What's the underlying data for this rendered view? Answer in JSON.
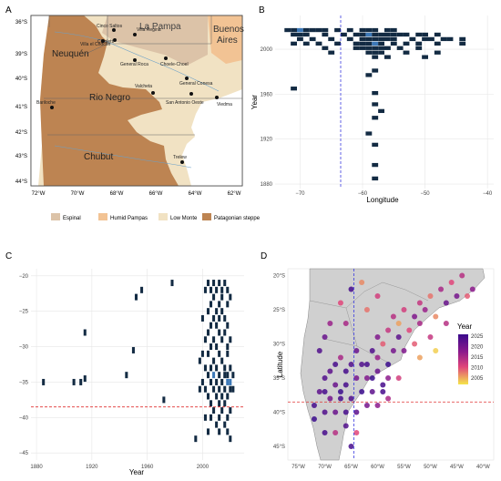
{
  "panels": {
    "A": {
      "letter": "A",
      "y_ticks": [
        "36°S",
        "39°S",
        "40°S",
        "41°S",
        "42°S",
        "43°S",
        "44°S"
      ],
      "x_ticks": [
        "72°W",
        "70°W",
        "68°W",
        "66°W",
        "64°W",
        "62°W"
      ],
      "regions": [
        "La Pampa",
        "Buenos Aires",
        "Neuquén",
        "Rio Negro",
        "Chubut"
      ],
      "cities": [
        "Cinco Saltos",
        "Cipoletti",
        "Villa Regina",
        "Villa el Chocón",
        "General Roca",
        "Choele-Choel",
        "General Conesa",
        "Bariloche",
        "Valcheta",
        "San Antonio Oeste",
        "Viedma",
        "Trelew"
      ],
      "legend": [
        {
          "label": "Espinal",
          "color": "#dcc3a8"
        },
        {
          "label": "Humid Pampas",
          "color": "#f2c394"
        },
        {
          "label": "Low Monte",
          "color": "#f1e2c3"
        },
        {
          "label": "Patagonian steppe",
          "color": "#bd8452"
        }
      ]
    },
    "B": {
      "letter": "B",
      "xlabel": "Longitude",
      "ylabel": "Year",
      "x_ticks": [
        "−70",
        "−60",
        "−50",
        "−40"
      ],
      "y_ticks": [
        "1880",
        "1920",
        "1960",
        "2000"
      ]
    },
    "C": {
      "letter": "C",
      "xlabel": "Year",
      "x_ticks": [
        "1880",
        "1920",
        "1960",
        "2000"
      ],
      "y_ticks": [
        "−20",
        "−25",
        "−30",
        "−35",
        "−40",
        "−45"
      ]
    },
    "D": {
      "letter": "D",
      "ylabel": "Latitude",
      "x_ticks": [
        "75°W",
        "70°W",
        "65°W",
        "60°W",
        "55°W",
        "50°W",
        "45°W",
        "40°W"
      ],
      "y_ticks": [
        "20°S",
        "25°S",
        "30°S",
        "35°S",
        "40°S",
        "45°S"
      ],
      "legend_title": "Year",
      "legend_ticks": [
        "2025",
        "2020",
        "2015",
        "2010",
        "2005"
      ]
    }
  },
  "chart_data": [
    {
      "panel": "B",
      "type": "heatmap",
      "xlabel": "Longitude",
      "ylabel": "Year",
      "xlim": [
        -74,
        -39
      ],
      "ylim": [
        1876,
        2030
      ],
      "reference_line": {
        "axis": "x",
        "value": -63.5,
        "color": "#3a3ae0",
        "style": "dashed"
      },
      "cells": [
        [
          -72,
          2017
        ],
        [
          -71,
          2017
        ],
        [
          -70,
          2017
        ],
        [
          -69,
          2017
        ],
        [
          -68,
          2017
        ],
        [
          -67,
          2017
        ],
        [
          -66,
          2017
        ],
        [
          -64,
          2017
        ],
        [
          -62,
          2017
        ],
        [
          -60,
          2017
        ],
        [
          -59,
          2017
        ],
        [
          -58,
          2017
        ],
        [
          -56,
          2017
        ],
        [
          -55,
          2017
        ],
        [
          -71,
          2013
        ],
        [
          -70,
          2013
        ],
        [
          -69,
          2013
        ],
        [
          -66,
          2013
        ],
        [
          -63,
          2013
        ],
        [
          -61,
          2013
        ],
        [
          -60,
          2013
        ],
        [
          -59,
          2013
        ],
        [
          -58,
          2013
        ],
        [
          -57,
          2013
        ],
        [
          -56,
          2013
        ],
        [
          -55,
          2013
        ],
        [
          -54,
          2013
        ],
        [
          -53,
          2013
        ],
        [
          -51,
          2013
        ],
        [
          -50,
          2013
        ],
        [
          -48,
          2013
        ],
        [
          -70,
          2009
        ],
        [
          -68,
          2009
        ],
        [
          -65,
          2009
        ],
        [
          -62,
          2009
        ],
        [
          -60,
          2009
        ],
        [
          -59,
          2009
        ],
        [
          -58,
          2009
        ],
        [
          -57,
          2009
        ],
        [
          -56,
          2009
        ],
        [
          -55,
          2009
        ],
        [
          -52,
          2009
        ],
        [
          -50,
          2009
        ],
        [
          -49,
          2009
        ],
        [
          -47,
          2009
        ],
        [
          -46,
          2009
        ],
        [
          -44,
          2009
        ],
        [
          -71,
          2005
        ],
        [
          -69,
          2005
        ],
        [
          -67,
          2005
        ],
        [
          -64,
          2005
        ],
        [
          -61,
          2005
        ],
        [
          -60,
          2005
        ],
        [
          -59,
          2005
        ],
        [
          -58,
          2005
        ],
        [
          -57,
          2005
        ],
        [
          -55,
          2005
        ],
        [
          -53,
          2005
        ],
        [
          -51,
          2005
        ],
        [
          -48,
          2005
        ],
        [
          -44,
          2005
        ],
        [
          -66,
          2001
        ],
        [
          -61,
          2001
        ],
        [
          -60,
          2001
        ],
        [
          -59,
          2001
        ],
        [
          -58,
          2001
        ],
        [
          -57,
          2001
        ],
        [
          -56,
          2001
        ],
        [
          -54,
          2001
        ],
        [
          -51,
          2001
        ],
        [
          -65,
          1997
        ],
        [
          -59,
          1997
        ],
        [
          -58,
          1997
        ],
        [
          -57,
          1997
        ],
        [
          -53,
          1997
        ],
        [
          -48,
          1997
        ],
        [
          -58,
          1993
        ],
        [
          -56,
          1993
        ],
        [
          -50,
          1993
        ],
        [
          -58,
          1981
        ],
        [
          -59,
          1977
        ],
        [
          -71,
          1965
        ],
        [
          -58,
          1961
        ],
        [
          -58,
          1951
        ],
        [
          -57,
          1945
        ],
        [
          -58,
          1939
        ],
        [
          -59,
          1925
        ],
        [
          -58,
          1915
        ],
        [
          -58,
          1897
        ],
        [
          -58,
          1885
        ]
      ],
      "hot_cells": [
        [
          -70,
          2017
        ],
        [
          -59,
          2013
        ],
        [
          -58,
          2005
        ]
      ]
    },
    {
      "panel": "C",
      "type": "heatmap",
      "xlabel": "Year",
      "xlim": [
        1876,
        2030
      ],
      "ylim": [
        -46,
        -19
      ],
      "reference_line": {
        "axis": "y",
        "value": -38.5,
        "color": "#e03030",
        "style": "dashed"
      },
      "cells": [
        [
          1885,
          -35
        ],
        [
          1907,
          -35
        ],
        [
          1912,
          -35
        ],
        [
          1915,
          -34.5
        ],
        [
          1915,
          -28
        ],
        [
          1945,
          -34
        ],
        [
          1950,
          -30.5
        ],
        [
          1952,
          -23
        ],
        [
          1956,
          -22
        ],
        [
          1972,
          -37.5
        ],
        [
          1978,
          -21
        ],
        [
          1995,
          -43
        ],
        [
          1998,
          -32
        ],
        [
          1998,
          -36
        ],
        [
          2000,
          -26
        ],
        [
          2000,
          -31
        ],
        [
          2000,
          -35
        ],
        [
          2002,
          -22
        ],
        [
          2002,
          -29
        ],
        [
          2002,
          -33
        ],
        [
          2002,
          -36
        ],
        [
          2002,
          -40
        ],
        [
          2004,
          -21
        ],
        [
          2004,
          -25
        ],
        [
          2004,
          -28
        ],
        [
          2004,
          -31
        ],
        [
          2004,
          -34
        ],
        [
          2004,
          -37
        ],
        [
          2004,
          -42
        ],
        [
          2006,
          -22
        ],
        [
          2006,
          -24
        ],
        [
          2006,
          -27
        ],
        [
          2006,
          -30
        ],
        [
          2006,
          -33
        ],
        [
          2006,
          -35
        ],
        [
          2006,
          -38
        ],
        [
          2006,
          -40
        ],
        [
          2008,
          -21
        ],
        [
          2008,
          -23
        ],
        [
          2008,
          -26
        ],
        [
          2008,
          -29
        ],
        [
          2008,
          -32
        ],
        [
          2008,
          -34
        ],
        [
          2008,
          -36
        ],
        [
          2008,
          -39
        ],
        [
          2010,
          -22
        ],
        [
          2010,
          -25
        ],
        [
          2010,
          -27
        ],
        [
          2010,
          -30
        ],
        [
          2010,
          -33
        ],
        [
          2010,
          -35
        ],
        [
          2010,
          -37
        ],
        [
          2010,
          -41
        ],
        [
          2012,
          -21
        ],
        [
          2012,
          -24
        ],
        [
          2012,
          -26
        ],
        [
          2012,
          -28
        ],
        [
          2012,
          -31
        ],
        [
          2012,
          -34
        ],
        [
          2012,
          -36
        ],
        [
          2012,
          -38
        ],
        [
          2012,
          -40
        ],
        [
          2012,
          -42
        ],
        [
          2014,
          -22
        ],
        [
          2014,
          -23
        ],
        [
          2014,
          -25
        ],
        [
          2014,
          -29
        ],
        [
          2014,
          -32
        ],
        [
          2014,
          -35
        ],
        [
          2014,
          -37
        ],
        [
          2014,
          -39
        ],
        [
          2016,
          -21
        ],
        [
          2016,
          -26
        ],
        [
          2016,
          -28
        ],
        [
          2016,
          -33
        ],
        [
          2016,
          -34
        ],
        [
          2016,
          -36
        ],
        [
          2016,
          -38
        ],
        [
          2016,
          -41
        ],
        [
          2018,
          -22
        ],
        [
          2018,
          -24
        ],
        [
          2018,
          -27
        ],
        [
          2018,
          -30
        ],
        [
          2018,
          -31
        ],
        [
          2018,
          -34
        ],
        [
          2018,
          -35
        ],
        [
          2018,
          -37
        ],
        [
          2018,
          -40
        ],
        [
          2018,
          -42
        ],
        [
          2020,
          -23
        ],
        [
          2020,
          -29
        ],
        [
          2020,
          -33
        ],
        [
          2020,
          -35
        ],
        [
          2020,
          -36
        ],
        [
          2020,
          -39
        ],
        [
          2020,
          -43
        ],
        [
          2022,
          -34
        ],
        [
          2022,
          -36
        ]
      ],
      "hot_cells": [
        [
          2008,
          -34
        ],
        [
          2018,
          -35
        ],
        [
          2020,
          -35
        ]
      ]
    },
    {
      "panel": "D",
      "type": "scatter",
      "ylabel": "Latitude",
      "xlim": [
        -77,
        -38
      ],
      "ylim": [
        -47,
        -19
      ],
      "color_scale": {
        "title": "Year",
        "min": 2005,
        "max": 2025,
        "low_color": "#f5e64a",
        "high_color": "#3a0a8c"
      },
      "reference_lines": [
        {
          "axis": "x",
          "value": -64.5,
          "color": "#3a3ae0",
          "style": "dashed"
        },
        {
          "axis": "y",
          "value": -38.5,
          "color": "#e03030",
          "style": "dashed"
        }
      ],
      "points": [
        [
          -44,
          -20,
          2015
        ],
        [
          -46,
          -21,
          2012
        ],
        [
          -42,
          -22,
          2018
        ],
        [
          -48,
          -22,
          2016
        ],
        [
          -50,
          -23,
          2010
        ],
        [
          -45,
          -23,
          2020
        ],
        [
          -52,
          -24,
          2014
        ],
        [
          -47,
          -24,
          2021
        ],
        [
          -43,
          -23,
          2011
        ],
        [
          -55,
          -25,
          2013
        ],
        [
          -51,
          -25,
          2017
        ],
        [
          -49,
          -26,
          2009
        ],
        [
          -53,
          -26,
          2019
        ],
        [
          -56,
          -27,
          2008
        ],
        [
          -52,
          -27,
          2016
        ],
        [
          -54,
          -28,
          2012
        ],
        [
          -57,
          -26,
          2015
        ],
        [
          -58,
          -28,
          2014
        ],
        [
          -60,
          -29,
          2019
        ],
        [
          -56,
          -29,
          2022
        ],
        [
          -59,
          -30,
          2011
        ],
        [
          -61,
          -31,
          2023
        ],
        [
          -57,
          -31,
          2020
        ],
        [
          -60,
          -32,
          2017
        ],
        [
          -62,
          -33,
          2024
        ],
        [
          -64,
          -31,
          2021
        ],
        [
          -65,
          -33,
          2023
        ],
        [
          -67,
          -32,
          2016
        ],
        [
          -68,
          -33,
          2024
        ],
        [
          -69,
          -34,
          2022
        ],
        [
          -70,
          -35,
          2023
        ],
        [
          -68,
          -36,
          2021
        ],
        [
          -66,
          -36,
          2024
        ],
        [
          -64,
          -35,
          2020
        ],
        [
          -62,
          -35,
          2019
        ],
        [
          -60,
          -34,
          2021
        ],
        [
          -58,
          -35,
          2018
        ],
        [
          -56,
          -35,
          2013
        ],
        [
          -59,
          -36,
          2024
        ],
        [
          -61,
          -37,
          2022
        ],
        [
          -63,
          -37,
          2025
        ],
        [
          -65,
          -38,
          2023
        ],
        [
          -67,
          -38,
          2024
        ],
        [
          -69,
          -38,
          2020
        ],
        [
          -71,
          -37,
          2022
        ],
        [
          -72,
          -39,
          2024
        ],
        [
          -70,
          -40,
          2023
        ],
        [
          -68,
          -40,
          2021
        ],
        [
          -66,
          -40,
          2024
        ],
        [
          -64,
          -40,
          2022
        ],
        [
          -62,
          -39,
          2020
        ],
        [
          -60,
          -39,
          2018
        ],
        [
          -58,
          -38,
          2016
        ],
        [
          -66,
          -42,
          2023
        ],
        [
          -68,
          -43,
          2015
        ],
        [
          -64,
          -43,
          2012
        ],
        [
          -65,
          -45,
          2024
        ],
        [
          -65,
          -22,
          2024
        ],
        [
          -67,
          -24,
          2012
        ],
        [
          -66,
          -27,
          2016
        ],
        [
          -62,
          -25,
          2010
        ],
        [
          -60,
          -23,
          2013
        ],
        [
          -63,
          -21,
          2009
        ],
        [
          -70,
          -29,
          2021
        ],
        [
          -71,
          -31,
          2023
        ],
        [
          -69,
          -27,
          2017
        ],
        [
          -58,
          -33,
          2025
        ],
        [
          -55,
          -31,
          2019
        ],
        [
          -53,
          -30,
          2011
        ],
        [
          -52,
          -32,
          2008
        ],
        [
          -50,
          -29,
          2014
        ],
        [
          -49,
          -31,
          2006
        ],
        [
          -47,
          -27,
          2015
        ],
        [
          -66,
          -34,
          2024
        ],
        [
          -63,
          -33,
          2023
        ],
        [
          -61,
          -35,
          2025
        ],
        [
          -59,
          -37,
          2024
        ],
        [
          -70,
          -37,
          2024
        ],
        [
          -67,
          -37,
          2025
        ],
        [
          -72,
          -41,
          2025
        ],
        [
          -70,
          -43,
          2024
        ]
      ]
    }
  ]
}
